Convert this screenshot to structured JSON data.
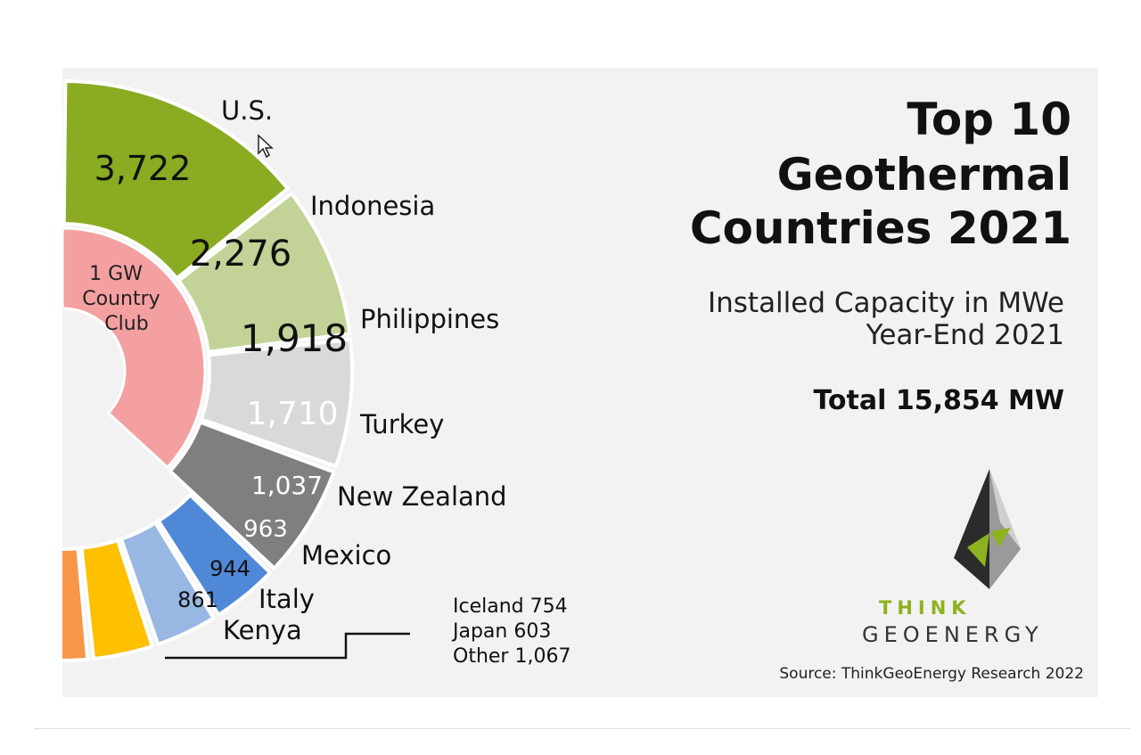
{
  "chart_data": {
    "type": "pie",
    "title": "Top 10 Geothermal Countries 2021",
    "subtitle": "Installed Capacity in MWe Year-End 2021",
    "total_label": "Total 15,854 MW",
    "units": "MWe",
    "slices": [
      {
        "label": "U.S.",
        "value": 3722,
        "value_label": "3,722",
        "color": "#8aab22"
      },
      {
        "label": "Indonesia",
        "value": 2276,
        "value_label": "2,276",
        "color": "#c3d397"
      },
      {
        "label": "Philippines",
        "value": 1918,
        "value_label": "1,918",
        "color": "#d9d9d9"
      },
      {
        "label": "Turkey",
        "value": 1710,
        "value_label": "1,710",
        "color": "#7f7f7f"
      },
      {
        "label": "New Zealand",
        "value": 1037,
        "value_label": "1,037",
        "color": "#4f88d6"
      },
      {
        "label": "Mexico",
        "value": 963,
        "value_label": "963",
        "color": "#98b7e3"
      },
      {
        "label": "Italy",
        "value": 944,
        "value_label": "944",
        "color": "#ffc000"
      },
      {
        "label": "Kenya",
        "value": 861,
        "value_label": "861",
        "color": "#f79646"
      },
      {
        "label": "Iceland",
        "value": 754,
        "value_label": "",
        "color": "#cc1a12"
      },
      {
        "label": "Japan",
        "value": 603,
        "value_label": "",
        "color": "#f2f2f2"
      },
      {
        "label": "Other",
        "value": 1067,
        "value_label": "",
        "color": "#948a54"
      }
    ],
    "inner_group": {
      "label_lines": [
        "1 GW",
        "Country",
        "Club"
      ],
      "color": "#f4a0a0"
    },
    "others_list": [
      "Iceland 754",
      "Japan 603",
      "Other 1,067"
    ]
  },
  "title_lines": [
    "Top 10",
    "Geothermal",
    "Countries 2021"
  ],
  "subtitle_lines": [
    "Installed Capacity in MWe",
    "Year-End 2021"
  ],
  "total": "Total 15,854 MW",
  "source": "Source: ThinkGeoEnergy Research 2022",
  "brand": {
    "line1": "THINK",
    "line2": "GEOENERGY"
  },
  "colors": {
    "background": "#f2f2f2",
    "brand_green": "#8db21e"
  }
}
